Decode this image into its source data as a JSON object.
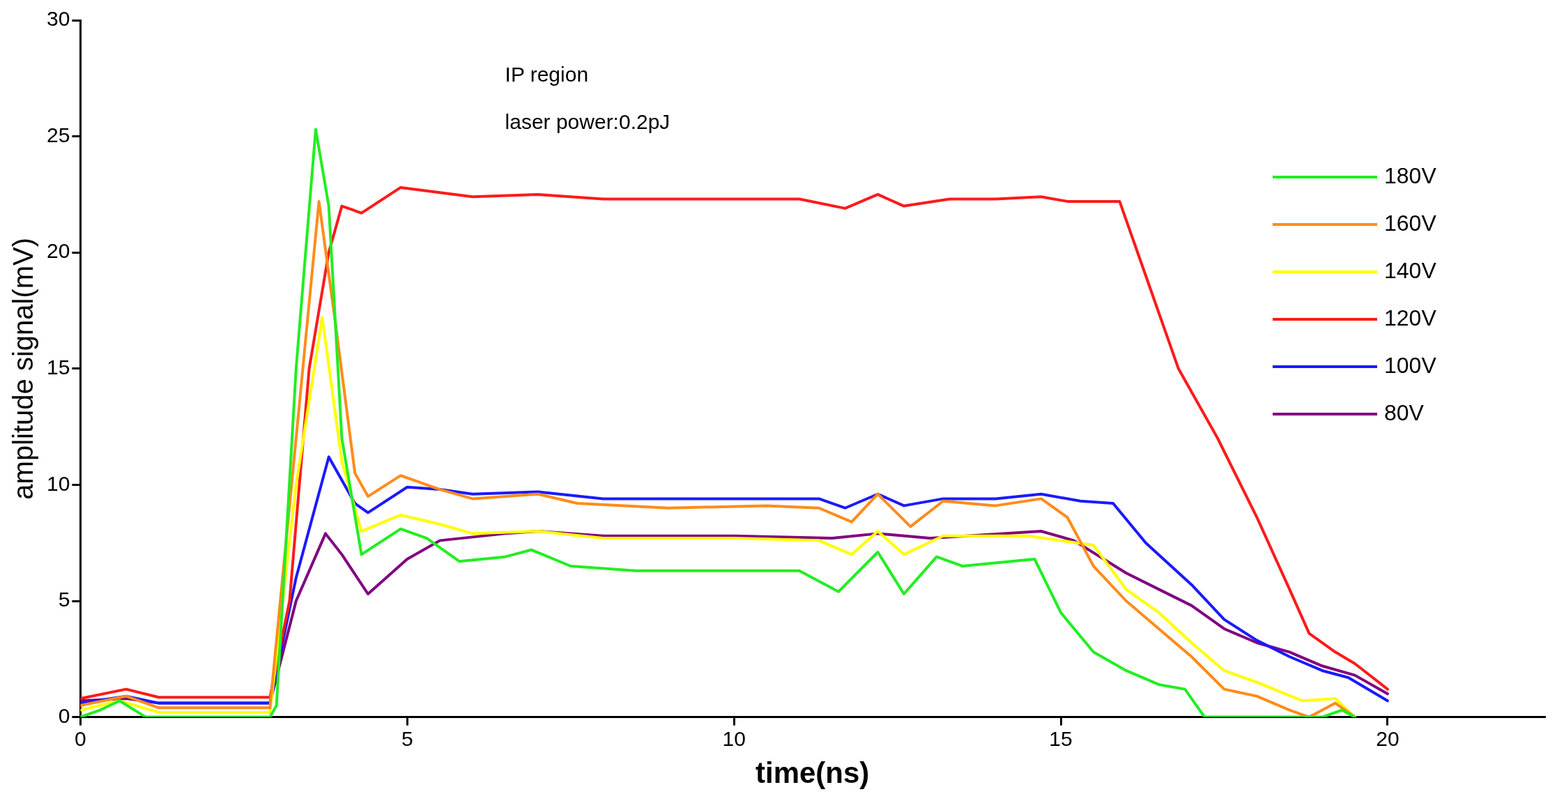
{
  "chart_data": {
    "type": "line",
    "xlabel": "time(ns)",
    "ylabel": "amplitude signal(mV)",
    "annotations": [
      "IP region",
      "laser power:0.2pJ"
    ],
    "xlim": [
      0,
      22.4
    ],
    "xticks": [
      0,
      5,
      10,
      15,
      20
    ],
    "ylim": [
      0,
      30
    ],
    "yticks": [
      0,
      5,
      10,
      15,
      20,
      25,
      30
    ],
    "grid": false,
    "legend": "top right",
    "marker": "none",
    "line_style": "solid",
    "series": [
      {
        "name": "180V",
        "color": "#22ee22",
        "x": [
          0,
          0.3,
          0.6,
          1.0,
          1.5,
          2.9,
          3.0,
          3.3,
          3.6,
          3.8,
          4.0,
          4.3,
          4.9,
          5.3,
          5.8,
          6.5,
          6.9,
          7.5,
          8.5,
          10,
          11,
          11.6,
          12.2,
          12.6,
          13.1,
          13.5,
          14.6,
          15.0,
          15.5,
          16.0,
          16.5,
          16.9,
          17.2,
          19.0,
          19.3,
          19.5
        ],
        "values": [
          0,
          0.3,
          0.7,
          0,
          0,
          0,
          0.5,
          15,
          25.3,
          22,
          12,
          7,
          8.1,
          7.7,
          6.7,
          6.9,
          7.2,
          6.5,
          6.3,
          6.3,
          6.3,
          5.4,
          7.1,
          5.3,
          6.9,
          6.5,
          6.8,
          4.5,
          2.8,
          2.0,
          1.4,
          1.2,
          0,
          0,
          0.3,
          0
        ]
      },
      {
        "name": "160V",
        "color": "#ff8c1a",
        "x": [
          0,
          0.7,
          1.2,
          2.9,
          3.3,
          3.65,
          3.9,
          4.2,
          4.4,
          4.9,
          5.5,
          6,
          7,
          7.6,
          9,
          10.5,
          11.3,
          11.8,
          12.2,
          12.7,
          13.2,
          14,
          14.7,
          15.1,
          15.5,
          16,
          16.5,
          17,
          17.5,
          18,
          18.5,
          18.8,
          19.2,
          19.5
        ],
        "values": [
          0.5,
          0.9,
          0.4,
          0.4,
          12,
          22.2,
          17,
          10.5,
          9.5,
          10.4,
          9.8,
          9.4,
          9.6,
          9.2,
          9.0,
          9.1,
          9.0,
          8.4,
          9.6,
          8.2,
          9.3,
          9.1,
          9.4,
          8.6,
          6.5,
          5,
          3.8,
          2.6,
          1.2,
          0.9,
          0.3,
          0,
          0.6,
          0
        ]
      },
      {
        "name": "140V",
        "color": "#ffff00",
        "x": [
          0,
          0.6,
          1.2,
          2.9,
          3.3,
          3.7,
          4.0,
          4.3,
          4.9,
          5.5,
          6,
          7,
          8,
          10,
          11.3,
          11.8,
          12.2,
          12.6,
          13.2,
          14.5,
          15,
          15.5,
          16,
          16.5,
          17,
          17.5,
          18,
          18.7,
          19.2,
          19.5
        ],
        "values": [
          0.3,
          0.7,
          0.2,
          0.2,
          10,
          17.2,
          11,
          8.0,
          8.7,
          8.3,
          7.9,
          8.0,
          7.7,
          7.7,
          7.6,
          7.0,
          8.0,
          7.0,
          7.8,
          7.8,
          7.6,
          7.4,
          5.5,
          4.5,
          3.2,
          2.0,
          1.5,
          0.7,
          0.8,
          0
        ]
      },
      {
        "name": "120V",
        "color": "#ff1a1a",
        "x": [
          0,
          0.7,
          1.2,
          2.9,
          3.2,
          3.5,
          3.8,
          4.0,
          4.3,
          4.9,
          6,
          7,
          8,
          10,
          11,
          11.7,
          12.2,
          12.6,
          13.3,
          14,
          14.7,
          15.1,
          15.9,
          16.3,
          16.8,
          17.4,
          18,
          18.5,
          18.8,
          19.2,
          19.5,
          20
        ],
        "values": [
          0.8,
          1.2,
          0.85,
          0.85,
          5,
          15,
          20,
          22,
          21.7,
          22.8,
          22.4,
          22.5,
          22.3,
          22.3,
          22.3,
          21.9,
          22.5,
          22.0,
          22.3,
          22.3,
          22.4,
          22.2,
          22.2,
          19,
          15,
          12,
          8.6,
          5.5,
          3.6,
          2.8,
          2.3,
          1.2
        ]
      },
      {
        "name": "100V",
        "color": "#1a1aff",
        "x": [
          0,
          0.7,
          1.2,
          2.9,
          3.3,
          3.8,
          4.2,
          4.4,
          5.0,
          5.5,
          6,
          7,
          8,
          10,
          11.3,
          11.7,
          12.2,
          12.6,
          13.2,
          14,
          14.7,
          15.3,
          15.8,
          16.3,
          17,
          17.5,
          18,
          18.5,
          19,
          19.4,
          20
        ],
        "values": [
          0.6,
          0.9,
          0.6,
          0.6,
          6,
          11.2,
          9.2,
          8.8,
          9.9,
          9.8,
          9.6,
          9.7,
          9.4,
          9.4,
          9.4,
          9.0,
          9.6,
          9.1,
          9.4,
          9.4,
          9.6,
          9.3,
          9.2,
          7.5,
          5.7,
          4.2,
          3.3,
          2.6,
          2.0,
          1.7,
          0.7
        ]
      },
      {
        "name": "80V",
        "color": "#800080",
        "x": [
          0,
          0.7,
          1.2,
          2.9,
          3.3,
          3.75,
          4.0,
          4.4,
          5.0,
          5.5,
          6.5,
          7,
          8,
          10,
          11.5,
          12.2,
          13,
          14.7,
          15.2,
          16,
          16.5,
          17,
          17.5,
          18,
          18.5,
          19,
          19.5,
          20
        ],
        "values": [
          0.7,
          0.8,
          0.6,
          0.6,
          5,
          7.9,
          7.0,
          5.3,
          6.8,
          7.6,
          7.9,
          8.0,
          7.8,
          7.8,
          7.7,
          7.9,
          7.7,
          8.0,
          7.6,
          6.2,
          5.5,
          4.8,
          3.8,
          3.2,
          2.8,
          2.2,
          1.8,
          1.0
        ]
      }
    ]
  }
}
